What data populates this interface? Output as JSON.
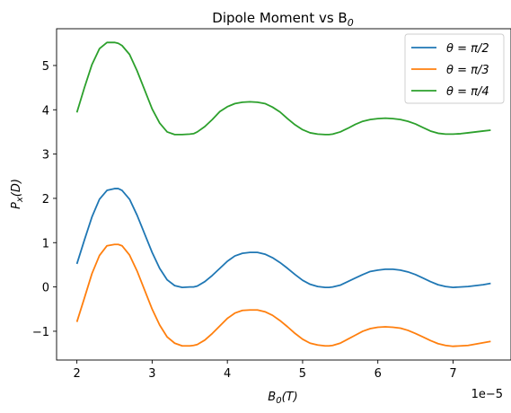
{
  "chart_data": {
    "type": "line",
    "title": "Dipole Moment vs B",
    "title_sub": "0",
    "xlabel": "B",
    "xlabel_sub": "0",
    "xlabel_suffix": "(T)",
    "ylabel": "P",
    "ylabel_sub": "x",
    "ylabel_suffix": "(D)",
    "x_offset_label": "1e−5",
    "xlim": [
      1.73,
      7.77
    ],
    "ylim": [
      -1.65,
      5.83
    ],
    "xticks": [
      2,
      3,
      4,
      5,
      6,
      7
    ],
    "yticks": [
      -1,
      0,
      1,
      2,
      3,
      4,
      5
    ],
    "x_tick_labels": [
      "2",
      "3",
      "4",
      "5",
      "6",
      "7"
    ],
    "y_tick_labels": [
      "−1",
      "0",
      "1",
      "2",
      "3",
      "4",
      "5"
    ],
    "grid": false,
    "legend_position": "top-right",
    "x": [
      2.0,
      2.1,
      2.2,
      2.3,
      2.4,
      2.5,
      2.55,
      2.6,
      2.7,
      2.8,
      2.9,
      3.0,
      3.1,
      3.2,
      3.3,
      3.4,
      3.5,
      3.55,
      3.6,
      3.7,
      3.8,
      3.9,
      4.0,
      4.1,
      4.2,
      4.3,
      4.4,
      4.5,
      4.6,
      4.7,
      4.8,
      4.9,
      5.0,
      5.1,
      5.2,
      5.3,
      5.35,
      5.4,
      5.5,
      5.6,
      5.7,
      5.8,
      5.9,
      6.0,
      6.1,
      6.2,
      6.3,
      6.4,
      6.5,
      6.6,
      6.7,
      6.8,
      6.9,
      7.0,
      7.1,
      7.2,
      7.3,
      7.4,
      7.5
    ],
    "series": [
      {
        "name": "θ = π/2",
        "color": "#1f77b4",
        "values": [
          0.52,
          1.06,
          1.58,
          1.98,
          2.18,
          2.22,
          2.22,
          2.18,
          1.98,
          1.62,
          1.2,
          0.78,
          0.42,
          0.16,
          0.03,
          -0.01,
          0.0,
          0.0,
          0.02,
          0.12,
          0.26,
          0.42,
          0.58,
          0.7,
          0.76,
          0.78,
          0.78,
          0.74,
          0.66,
          0.55,
          0.42,
          0.28,
          0.15,
          0.06,
          0.01,
          -0.01,
          -0.01,
          0.0,
          0.04,
          0.12,
          0.2,
          0.28,
          0.35,
          0.38,
          0.4,
          0.4,
          0.38,
          0.34,
          0.28,
          0.2,
          0.12,
          0.05,
          0.01,
          -0.01,
          0.0,
          0.01,
          0.03,
          0.05,
          0.08
        ]
      },
      {
        "name": "θ = π/3",
        "color": "#ff7f0e",
        "values": [
          -0.79,
          -0.25,
          0.3,
          0.71,
          0.93,
          0.96,
          0.96,
          0.93,
          0.72,
          0.36,
          -0.07,
          -0.5,
          -0.86,
          -1.13,
          -1.27,
          -1.33,
          -1.33,
          -1.32,
          -1.3,
          -1.2,
          -1.05,
          -0.88,
          -0.71,
          -0.59,
          -0.53,
          -0.52,
          -0.52,
          -0.56,
          -0.64,
          -0.76,
          -0.9,
          -1.05,
          -1.18,
          -1.27,
          -1.31,
          -1.33,
          -1.33,
          -1.32,
          -1.27,
          -1.18,
          -1.09,
          -1.0,
          -0.94,
          -0.91,
          -0.9,
          -0.91,
          -0.93,
          -0.98,
          -1.05,
          -1.13,
          -1.21,
          -1.28,
          -1.32,
          -1.34,
          -1.33,
          -1.32,
          -1.29,
          -1.26,
          -1.23
        ]
      },
      {
        "name": "θ = π/4",
        "color": "#2ca02c",
        "values": [
          3.94,
          4.5,
          5.02,
          5.38,
          5.52,
          5.52,
          5.5,
          5.45,
          5.25,
          4.88,
          4.45,
          4.02,
          3.7,
          3.5,
          3.44,
          3.44,
          3.45,
          3.46,
          3.5,
          3.62,
          3.78,
          3.96,
          4.07,
          4.14,
          4.17,
          4.18,
          4.17,
          4.14,
          4.06,
          3.95,
          3.8,
          3.66,
          3.55,
          3.48,
          3.45,
          3.44,
          3.44,
          3.45,
          3.5,
          3.58,
          3.67,
          3.74,
          3.78,
          3.8,
          3.81,
          3.8,
          3.78,
          3.74,
          3.68,
          3.6,
          3.52,
          3.47,
          3.45,
          3.45,
          3.46,
          3.48,
          3.5,
          3.52,
          3.54
        ]
      }
    ]
  }
}
